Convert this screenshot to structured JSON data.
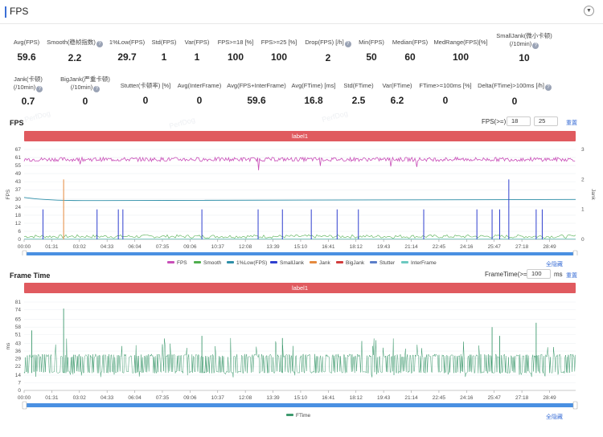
{
  "header": {
    "title": "FPS"
  },
  "stats_row1": [
    {
      "label": "Avg(FPS)",
      "value": "59.6",
      "help": false
    },
    {
      "label": "Smooth(稳帧指数)",
      "value": "2.2",
      "help": true
    },
    {
      "label": "1%Low(FPS)",
      "value": "29.7",
      "help": false
    },
    {
      "label": "Std(FPS)",
      "value": "1",
      "help": false
    },
    {
      "label": "Var(FPS)",
      "value": "1",
      "help": false
    },
    {
      "label": "FPS>=18 [%]",
      "value": "100",
      "help": false
    },
    {
      "label": "FPS>=25 [%]",
      "value": "100",
      "help": false
    },
    {
      "label": "Drop(FPS) [/h]",
      "value": "2",
      "help": true
    },
    {
      "label": "Min(FPS)",
      "value": "50",
      "help": false
    },
    {
      "label": "Median(FPS)",
      "value": "60",
      "help": false
    },
    {
      "label": "MedRange(FPS)[%]",
      "value": "100",
      "help": false
    },
    {
      "label": "SmallJank(微小卡顿)",
      "label2": "(/10min)",
      "value": "10",
      "help": true
    }
  ],
  "stats_row2": [
    {
      "label": "Jank(卡顿)",
      "label2": "(/10min)",
      "value": "0.7",
      "help": true
    },
    {
      "label": "BigJank(严重卡顿)",
      "label2": "(/10min)",
      "value": "0",
      "help": true
    },
    {
      "label": "Stutter(卡顿率) [%]",
      "value": "0",
      "help": false
    },
    {
      "label": "Avg(InterFrame)",
      "value": "0",
      "help": false
    },
    {
      "label": "Avg(FPS+InterFrame)",
      "value": "59.6",
      "help": false
    },
    {
      "label": "Avg(FTime) [ms]",
      "value": "16.8",
      "help": false
    },
    {
      "label": "Std(FTime)",
      "value": "2.5",
      "help": false
    },
    {
      "label": "Var(FTime)",
      "value": "6.2",
      "help": false
    },
    {
      "label": "FTime>=100ms [%]",
      "value": "0",
      "help": false
    },
    {
      "label": "Delta(FTime)>100ms [/h]",
      "value": "0",
      "help": true
    }
  ],
  "fps_section": {
    "title": "FPS",
    "threshold_label": "FPS(>=)",
    "threshold1": "18",
    "threshold2": "25",
    "reset": "重置",
    "label_bar": "label1",
    "hide_all": "全隐藏"
  },
  "ftime_section": {
    "title": "Frame Time",
    "threshold_label": "FrameTime(>=)",
    "threshold": "100",
    "unit": "ms",
    "reset": "重置",
    "label_bar": "label1",
    "hide_all": "全隐藏"
  },
  "watermarks": [
    "PerfDog",
    "PerfDog",
    "PerfDog"
  ],
  "colors": {
    "fps": "#c94fb8",
    "smooth": "#4fae4e",
    "low": "#2e8fa8",
    "smalljank": "#2f3fcf",
    "jank": "#e58a3e",
    "bigjank": "#d23c3c",
    "stutter": "#5b7ec9",
    "interframe": "#6cc9c0",
    "ftime": "#3e9a6e",
    "accent": "#3b6fd6"
  },
  "chart_data": [
    {
      "type": "line",
      "title": "FPS",
      "x_ticks": [
        "00:00",
        "01:31",
        "03:02",
        "04:33",
        "06:04",
        "07:35",
        "09:06",
        "10:37",
        "12:08",
        "13:39",
        "15:10",
        "16:41",
        "18:12",
        "19:43",
        "21:14",
        "22:45",
        "24:16",
        "25:47",
        "27:18",
        "28:49"
      ],
      "y_ticks": [
        0,
        6,
        12,
        18,
        24,
        30,
        37,
        43,
        49,
        55,
        61,
        67
      ],
      "ylim": [
        0,
        67
      ],
      "ylabel": "FPS",
      "y2_ticks": [
        0,
        1,
        2,
        3
      ],
      "y2lim": [
        0,
        3
      ],
      "y2label": "Jank",
      "series": [
        {
          "name": "FPS",
          "typical": 59.6,
          "min": 50
        },
        {
          "name": "Smooth",
          "typical": 2.2
        },
        {
          "name": "1%Low(FPS)",
          "typical": 29.7
        },
        {
          "name": "SmallJank",
          "events": [
            {
              "t": "01:02",
              "v": 1
            },
            {
              "t": "04:00",
              "v": 1
            },
            {
              "t": "05:10",
              "v": 1
            },
            {
              "t": "05:25",
              "v": 1
            },
            {
              "t": "09:45",
              "v": 1
            },
            {
              "t": "12:50",
              "v": 1
            },
            {
              "t": "14:10",
              "v": 1
            },
            {
              "t": "15:45",
              "v": 1
            },
            {
              "t": "17:10",
              "v": 1
            },
            {
              "t": "18:20",
              "v": 1
            },
            {
              "t": "21:55",
              "v": 1
            },
            {
              "t": "24:50",
              "v": 1
            },
            {
              "t": "25:40",
              "v": 1
            },
            {
              "t": "26:05",
              "v": 1
            },
            {
              "t": "26:35",
              "v": 2
            },
            {
              "t": "28:05",
              "v": 1
            },
            {
              "t": "28:25",
              "v": 1
            }
          ]
        },
        {
          "name": "Jank",
          "events": [
            {
              "t": "02:10",
              "v": 2
            }
          ]
        },
        {
          "name": "BigJank",
          "events": []
        },
        {
          "name": "Stutter",
          "typical": 0
        },
        {
          "name": "InterFrame",
          "typical": 0
        }
      ]
    },
    {
      "type": "line",
      "title": "Frame Time",
      "x_ticks": [
        "00:00",
        "01:31",
        "03:02",
        "04:33",
        "06:04",
        "07:35",
        "09:06",
        "10:37",
        "12:08",
        "13:39",
        "15:10",
        "16:41",
        "18:12",
        "19:43",
        "21:14",
        "22:45",
        "24:16",
        "25:47",
        "27:18",
        "28:49"
      ],
      "y_ticks": [
        0,
        7,
        14,
        22,
        29,
        36,
        43,
        51,
        58,
        65,
        74,
        81
      ],
      "ylim": [
        0,
        81
      ],
      "ylabel": "ms",
      "series": [
        {
          "name": "FTime",
          "typical_low": 16.7,
          "typical_high": 33.3,
          "peaks": [
            {
              "t": "02:10",
              "v": 75
            },
            {
              "t": "00:25",
              "v": 55
            },
            {
              "t": "09:45",
              "v": 50
            },
            {
              "t": "14:10",
              "v": 48
            },
            {
              "t": "25:40",
              "v": 58
            },
            {
              "t": "26:05",
              "v": 50
            },
            {
              "t": "28:05",
              "v": 62
            }
          ]
        }
      ]
    }
  ]
}
